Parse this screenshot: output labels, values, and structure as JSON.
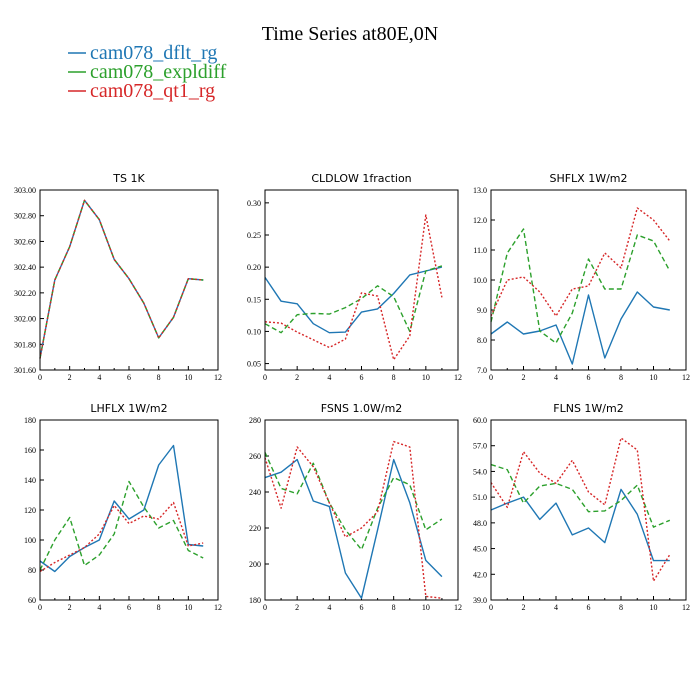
{
  "figure": {
    "title": "Time Series at80E,0N"
  },
  "legend": [
    {
      "name": "cam078_dflt_rg",
      "color": "#1f77b4",
      "dash": "solid"
    },
    {
      "name": "cam078_expldiff",
      "color": "#2ca02c",
      "dash": "dashed"
    },
    {
      "name": "cam078_qt1_rg",
      "color": "#d62728",
      "dash": "dotted"
    }
  ],
  "chart_data": [
    {
      "type": "line",
      "title": "TS   1K",
      "x": [
        0,
        1,
        2,
        3,
        4,
        5,
        6,
        7,
        8,
        9,
        10,
        11
      ],
      "xlim": [
        0,
        12
      ],
      "xticks": [
        "0",
        "2",
        "4",
        "6",
        "8",
        "10",
        "12"
      ],
      "xtick_values": [
        0,
        2,
        4,
        6,
        8,
        10,
        12
      ],
      "ylim": [
        301.6,
        303.0
      ],
      "yticks": [
        "301.60",
        "301.80",
        "302.00",
        "302.20",
        "302.40",
        "302.60",
        "302.80",
        "303.00"
      ],
      "ytick_values": [
        301.6,
        301.8,
        302.0,
        302.2,
        302.4,
        302.6,
        302.8,
        303.0
      ],
      "series": [
        {
          "name": "cam078_dflt_rg",
          "values": [
            301.69,
            302.3,
            302.56,
            302.92,
            302.77,
            302.46,
            302.31,
            302.12,
            301.85,
            302.01,
            302.31,
            302.3
          ]
        },
        {
          "name": "cam078_expldiff",
          "values": [
            301.69,
            302.3,
            302.56,
            302.92,
            302.77,
            302.46,
            302.31,
            302.12,
            301.85,
            302.01,
            302.31,
            302.3
          ]
        },
        {
          "name": "cam078_qt1_rg",
          "values": [
            301.69,
            302.3,
            302.56,
            302.92,
            302.77,
            302.46,
            302.31,
            302.12,
            301.85,
            302.01,
            302.31,
            302.3
          ]
        }
      ]
    },
    {
      "type": "line",
      "title": "CLDLOW   1fraction",
      "x": [
        0,
        1,
        2,
        3,
        4,
        5,
        6,
        7,
        8,
        9,
        10,
        11
      ],
      "xlim": [
        0,
        12
      ],
      "xticks": [
        "0",
        "2",
        "4",
        "6",
        "8",
        "10",
        "12"
      ],
      "xtick_values": [
        0,
        2,
        4,
        6,
        8,
        10,
        12
      ],
      "ylim": [
        0.04,
        0.32
      ],
      "yticks": [
        "0.05",
        "0.10",
        "0.15",
        "0.20",
        "0.25",
        "0.30"
      ],
      "ytick_values": [
        0.05,
        0.1,
        0.15,
        0.2,
        0.25,
        0.3
      ],
      "series": [
        {
          "name": "cam078_dflt_rg",
          "values": [
            0.184,
            0.147,
            0.143,
            0.112,
            0.098,
            0.099,
            0.13,
            0.135,
            0.159,
            0.188,
            0.194,
            0.2
          ]
        },
        {
          "name": "cam078_expldiff",
          "values": [
            0.112,
            0.098,
            0.126,
            0.128,
            0.127,
            0.137,
            0.151,
            0.171,
            0.154,
            0.1,
            0.194,
            0.202
          ]
        },
        {
          "name": "cam078_qt1_rg",
          "values": [
            0.115,
            0.113,
            0.099,
            0.087,
            0.075,
            0.088,
            0.16,
            0.155,
            0.056,
            0.093,
            0.281,
            0.153
          ]
        }
      ]
    },
    {
      "type": "line",
      "title": "SHFLX   1W/m2",
      "x": [
        0,
        1,
        2,
        3,
        4,
        5,
        6,
        7,
        8,
        9,
        10,
        11
      ],
      "xlim": [
        0,
        12
      ],
      "xticks": [
        "0",
        "2",
        "4",
        "6",
        "8",
        "10",
        "12"
      ],
      "xtick_values": [
        0,
        2,
        4,
        6,
        8,
        10,
        12
      ],
      "ylim": [
        7.0,
        13.0
      ],
      "yticks": [
        "7.0",
        "8.0",
        "9.0",
        "10.0",
        "11.0",
        "12.0",
        "13.0"
      ],
      "ytick_values": [
        7,
        8,
        9,
        10,
        11,
        12,
        13
      ],
      "series": [
        {
          "name": "cam078_dflt_rg",
          "values": [
            8.2,
            8.6,
            8.2,
            8.3,
            8.5,
            7.2,
            9.5,
            7.4,
            8.7,
            9.6,
            9.1,
            9.0
          ]
        },
        {
          "name": "cam078_expldiff",
          "values": [
            8.6,
            10.9,
            11.7,
            8.3,
            7.9,
            8.9,
            10.7,
            9.7,
            9.7,
            11.5,
            11.3,
            10.3
          ]
        },
        {
          "name": "cam078_qt1_rg",
          "values": [
            8.8,
            10.0,
            10.1,
            9.6,
            8.8,
            9.7,
            9.8,
            10.9,
            10.4,
            12.4,
            12.0,
            11.3
          ]
        }
      ]
    },
    {
      "type": "line",
      "title": "LHFLX   1W/m2",
      "x": [
        0,
        1,
        2,
        3,
        4,
        5,
        6,
        7,
        8,
        9,
        10,
        11
      ],
      "xlim": [
        0,
        12
      ],
      "xticks": [
        "0",
        "2",
        "4",
        "6",
        "8",
        "10",
        "12"
      ],
      "xtick_values": [
        0,
        2,
        4,
        6,
        8,
        10,
        12
      ],
      "ylim": [
        60,
        180
      ],
      "yticks": [
        "60",
        "80",
        "100",
        "120",
        "140",
        "160",
        "180"
      ],
      "ytick_values": [
        60,
        80,
        100,
        120,
        140,
        160,
        180
      ],
      "series": [
        {
          "name": "cam078_dflt_rg",
          "values": [
            86,
            79,
            89,
            95,
            100,
            126,
            114,
            120,
            150,
            163,
            97,
            96
          ]
        },
        {
          "name": "cam078_expldiff",
          "values": [
            80,
            100,
            115,
            83,
            90,
            104,
            139,
            122,
            108,
            113,
            93,
            88
          ]
        },
        {
          "name": "cam078_qt1_rg",
          "values": [
            79,
            85,
            90,
            95,
            104,
            123,
            111,
            116,
            114,
            125,
            96,
            98
          ]
        }
      ]
    },
    {
      "type": "line",
      "title": "FSNS   1.0W/m2",
      "x": [
        0,
        1,
        2,
        3,
        4,
        5,
        6,
        7,
        8,
        9,
        10,
        11
      ],
      "xlim": [
        0,
        12
      ],
      "xticks": [
        "0",
        "2",
        "4",
        "6",
        "8",
        "10",
        "12"
      ],
      "xtick_values": [
        0,
        2,
        4,
        6,
        8,
        10,
        12
      ],
      "ylim": [
        180,
        280
      ],
      "yticks": [
        "180",
        "200",
        "220",
        "240",
        "260",
        "280"
      ],
      "ytick_values": [
        180,
        200,
        220,
        240,
        260,
        280
      ],
      "series": [
        {
          "name": "cam078_dflt_rg",
          "values": [
            248,
            251,
            258,
            235,
            232,
            195,
            181,
            219,
            258,
            234,
            202,
            193
          ]
        },
        {
          "name": "cam078_expldiff",
          "values": [
            262,
            242,
            239,
            256,
            234,
            219,
            208,
            231,
            248,
            244,
            219,
            225
          ]
        },
        {
          "name": "cam078_qt1_rg",
          "values": [
            259,
            231,
            265,
            254,
            234,
            215,
            220,
            229,
            268,
            265,
            182,
            181
          ]
        }
      ]
    },
    {
      "type": "line",
      "title": "FLNS   1W/m2",
      "x": [
        0,
        1,
        2,
        3,
        4,
        5,
        6,
        7,
        8,
        9,
        10,
        11
      ],
      "xlim": [
        0,
        12
      ],
      "xticks": [
        "0",
        "2",
        "4",
        "6",
        "8",
        "10",
        "12"
      ],
      "xtick_values": [
        0,
        2,
        4,
        6,
        8,
        10,
        12
      ],
      "ylim": [
        39.0,
        60.0
      ],
      "yticks": [
        "39.0",
        "42.0",
        "45.0",
        "48.0",
        "51.0",
        "54.0",
        "57.0",
        "60.0"
      ],
      "ytick_values": [
        39,
        42,
        45,
        48,
        51,
        54,
        57,
        60
      ],
      "series": [
        {
          "name": "cam078_dflt_rg",
          "values": [
            49.5,
            50.3,
            51.0,
            48.4,
            50.3,
            46.6,
            47.4,
            45.7,
            51.9,
            49.0,
            43.6,
            43.6
          ]
        },
        {
          "name": "cam078_expldiff",
          "values": [
            54.8,
            54.2,
            50.3,
            52.3,
            52.6,
            51.9,
            49.3,
            49.4,
            50.6,
            52.4,
            47.5,
            48.3
          ]
        },
        {
          "name": "cam078_qt1_rg",
          "values": [
            52.7,
            49.8,
            56.3,
            53.8,
            52.6,
            55.3,
            51.6,
            50.1,
            57.9,
            56.5,
            41.2,
            44.3
          ]
        }
      ]
    }
  ]
}
